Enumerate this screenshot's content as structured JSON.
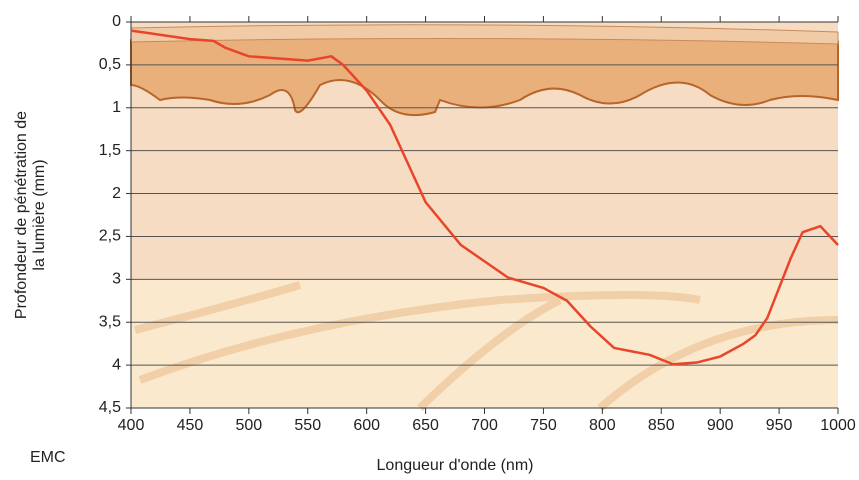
{
  "chart_data": {
    "type": "line",
    "xlabel": "Longueur d'onde (nm)",
    "ylabel": [
      "Profondeur de pénétration de",
      "la lumière (mm)"
    ],
    "logo": "EMC",
    "x": [
      400,
      410,
      450,
      470,
      480,
      500,
      550,
      570,
      580,
      600,
      620,
      650,
      680,
      720,
      750,
      770,
      790,
      810,
      840,
      860,
      880,
      900,
      920,
      930,
      940,
      950,
      960,
      970,
      985,
      1000
    ],
    "series": [
      {
        "color": "#e8452a",
        "values": [
          0.1,
          0.12,
          0.2,
          0.22,
          0.3,
          0.4,
          0.45,
          0.4,
          0.5,
          0.8,
          1.2,
          2.1,
          2.6,
          2.98,
          3.1,
          3.25,
          3.55,
          3.8,
          3.88,
          3.99,
          3.97,
          3.9,
          3.75,
          3.65,
          3.45,
          3.1,
          2.75,
          2.45,
          2.38,
          2.6
        ]
      }
    ],
    "xlim": [
      400,
      1000
    ],
    "xticks": [
      400,
      450,
      500,
      550,
      600,
      650,
      700,
      750,
      800,
      850,
      900,
      950,
      1000
    ],
    "ylim": [
      0,
      4.5
    ],
    "y_inverted": true,
    "yticks": [
      0,
      {
        "value": 0.5,
        "label": "0,5"
      },
      1,
      {
        "value": 1.5,
        "label": "1,5"
      },
      2,
      {
        "value": 2.5,
        "label": "2,5"
      },
      3,
      {
        "value": 3.5,
        "label": "3,5"
      },
      4,
      {
        "value": 4.5,
        "label": "4,5"
      }
    ],
    "grid": true
  }
}
